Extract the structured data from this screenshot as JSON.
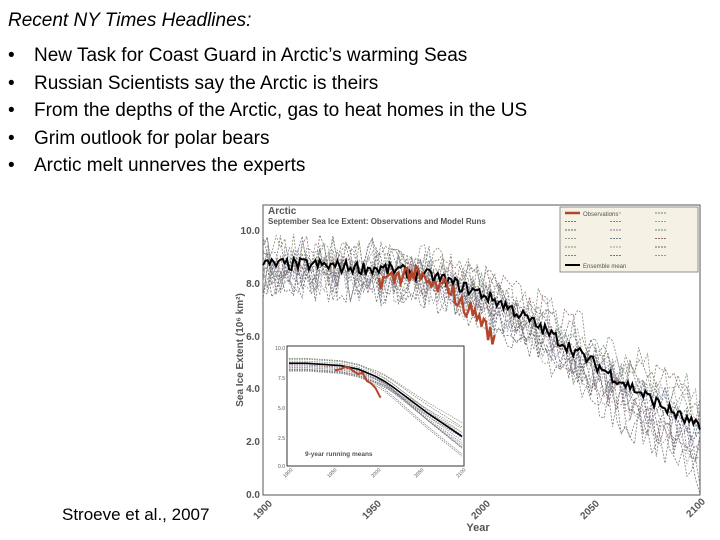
{
  "slide": {
    "heading": "Recent NY Times Headlines:",
    "bullet_char": "•",
    "bullets": [
      "New Task for Coast Guard in Arctic’s warming Seas",
      "Russian Scientists say the Arctic is theirs",
      "From the depths of the Arctic, gas to heat homes in the US",
      "Grim outlook for polar bears",
      "Arctic melt unnerves the experts"
    ],
    "citation": "Stroeve et al., 2007"
  },
  "chart_data": {
    "type": "line",
    "title": "Arctic",
    "subtitle": "September Sea Ice Extent: Observations and Model Runs",
    "xlabel": "Year",
    "ylabel": "Sea Ice Extent (10⁶ km²)",
    "xlim": [
      1900,
      2100
    ],
    "ylim": [
      0,
      10
    ],
    "x_ticks": [
      "1900",
      "1950",
      "2000",
      "2050",
      "2100"
    ],
    "y_ticks": [
      "0.0",
      "2.0",
      "4.0",
      "6.0",
      "8.0",
      "10.0"
    ],
    "legend_position": "top-right",
    "colors": {
      "observations": "#b5452a",
      "ensemble_mean": "#000000",
      "models": "#8c8c8c"
    },
    "series": [
      {
        "name": "Observations",
        "x": [
          1953,
          1960,
          1965,
          1970,
          1975,
          1980,
          1985,
          1990,
          1995,
          2000,
          2005,
          2006
        ],
        "y": [
          8.1,
          8.2,
          8.4,
          8.3,
          8.0,
          7.8,
          7.9,
          7.2,
          7.0,
          6.6,
          5.9,
          5.8
        ]
      },
      {
        "name": "Ensemble mean",
        "x": [
          1900,
          1920,
          1940,
          1960,
          1980,
          2000,
          2010,
          2020,
          2040,
          2060,
          2080,
          2100
        ],
        "y": [
          8.7,
          8.7,
          8.6,
          8.5,
          8.2,
          7.6,
          7.2,
          6.7,
          5.6,
          4.5,
          3.5,
          2.5
        ]
      }
    ],
    "inset": {
      "title": "9-year running means",
      "xlim": [
        1900,
        2100
      ],
      "ylim": [
        0,
        10
      ],
      "x_ticks": [
        "1900",
        "1950",
        "2000",
        "2050",
        "2100"
      ],
      "y_ticks": [
        "0.0",
        "2.5",
        "5.0",
        "7.5",
        "10.0"
      ]
    }
  }
}
